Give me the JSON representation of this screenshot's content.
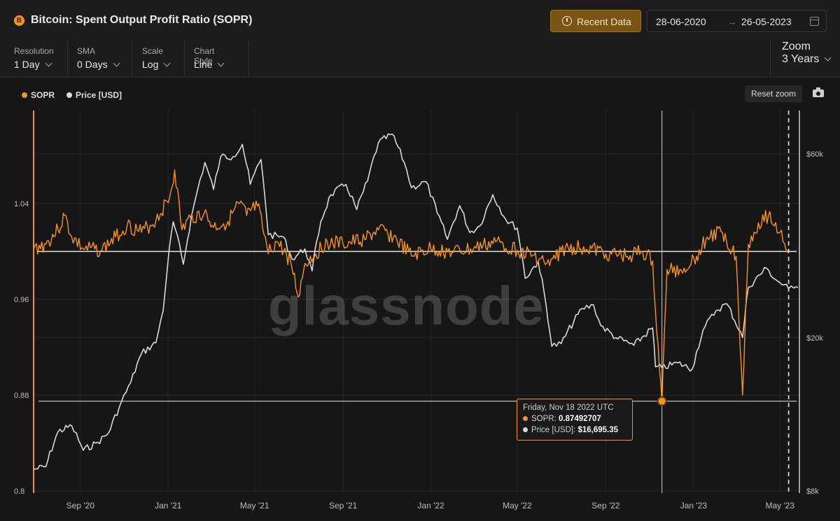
{
  "header": {
    "title": "Bitcoin: Spent Output Profit Ratio (SOPR)",
    "coin_icon": "bitcoin-icon",
    "recent_data_label": "Recent Data",
    "date_from": "28-06-2020",
    "date_to": "26-05-2023",
    "date_arrow": "→",
    "colors": {
      "accent": "#f7931a",
      "button_bg": "#7a5412"
    }
  },
  "controls": {
    "resolution": {
      "label": "Resolution",
      "value": "1 Day"
    },
    "sma": {
      "label": "SMA",
      "value": "0 Days"
    },
    "scale": {
      "label": "Scale",
      "value": "Log"
    },
    "chart_style": {
      "label": "Chart Style",
      "value": "Line"
    },
    "zoom": {
      "label": "Zoom",
      "value": "3 Years"
    }
  },
  "legend": {
    "items": [
      {
        "label": "SOPR",
        "color": "#f7931a"
      },
      {
        "label": "Price [USD]",
        "color": "#d9d9d9"
      }
    ]
  },
  "toolbar": {
    "reset_zoom_label": "Reset zoom",
    "camera_icon": "camera-icon"
  },
  "watermark": "glassnode",
  "tooltip": {
    "title": "Friday, Nov 18 2022 UTC",
    "sopr_label": "SOPR:",
    "sopr_value": "0.87492707",
    "price_label": "Price [USD]:",
    "price_value": "$16,695.35"
  },
  "chart_data": {
    "type": "line",
    "title": "Bitcoin: Spent Output Profit Ratio (SOPR)",
    "x_range": [
      "2020-06-28",
      "2023-05-26"
    ],
    "x_ticks": [
      "Sep '20",
      "Jan '21",
      "May '21",
      "Sep '21",
      "Jan '22",
      "May '22",
      "Sep '22",
      "Jan '23",
      "May '23"
    ],
    "y_left": {
      "ticks": [
        "0.8",
        "0.88",
        "0.96",
        "1.04"
      ],
      "range": [
        0.8,
        1.08
      ],
      "series": "SOPR"
    },
    "y_right": {
      "scale": "log",
      "ticks": [
        "$8k",
        "$20k",
        "$60k"
      ],
      "range": [
        8000,
        70000
      ],
      "series": "Price [USD]"
    },
    "reference_line_sopr": 1.0,
    "cursor": {
      "x": "2022-11-18",
      "sopr": 0.87492707,
      "price": 16695.35
    },
    "vertical_dashed_marker": "2023-05-13",
    "series": [
      {
        "name": "SOPR",
        "color": "#f7931a",
        "axis": "left",
        "points": [
          [
            "2020-06-28",
            1.002
          ],
          [
            "2020-07-15",
            1.006
          ],
          [
            "2020-08-01",
            1.018
          ],
          [
            "2020-08-10",
            1.03
          ],
          [
            "2020-08-20",
            1.012
          ],
          [
            "2020-09-05",
            1.002
          ],
          [
            "2020-10-01",
            1.001
          ],
          [
            "2020-10-20",
            1.012
          ],
          [
            "2020-11-05",
            1.022
          ],
          [
            "2020-11-25",
            1.016
          ],
          [
            "2020-12-15",
            1.026
          ],
          [
            "2021-01-03",
            1.045
          ],
          [
            "2021-01-10",
            1.068
          ],
          [
            "2021-01-20",
            1.018
          ],
          [
            "2021-02-01",
            1.028
          ],
          [
            "2021-02-20",
            1.032
          ],
          [
            "2021-03-05",
            1.02
          ],
          [
            "2021-03-25",
            1.025
          ],
          [
            "2021-04-10",
            1.04
          ],
          [
            "2021-04-20",
            1.03
          ],
          [
            "2021-05-05",
            1.038
          ],
          [
            "2021-05-12",
            1.02
          ],
          [
            "2021-05-20",
            0.998
          ],
          [
            "2021-06-01",
            1.008
          ],
          [
            "2021-06-20",
            0.992
          ],
          [
            "2021-07-01",
            0.962
          ],
          [
            "2021-07-10",
            0.99
          ],
          [
            "2021-07-25",
            0.998
          ],
          [
            "2021-08-10",
            1.008
          ],
          [
            "2021-09-01",
            1.006
          ],
          [
            "2021-10-01",
            1.01
          ],
          [
            "2021-10-20",
            1.018
          ],
          [
            "2021-11-10",
            1.012
          ],
          [
            "2021-12-05",
            0.996
          ],
          [
            "2022-01-01",
            1.002
          ],
          [
            "2022-02-01",
            0.999
          ],
          [
            "2022-03-01",
            1.002
          ],
          [
            "2022-04-01",
            1.008
          ],
          [
            "2022-05-01",
            1.001
          ],
          [
            "2022-06-01",
            0.994
          ],
          [
            "2022-06-15",
            0.988
          ],
          [
            "2022-07-01",
            1.001
          ],
          [
            "2022-08-01",
            1.004
          ],
          [
            "2022-09-01",
            0.998
          ],
          [
            "2022-10-01",
            0.996
          ],
          [
            "2022-10-20",
            1.0
          ],
          [
            "2022-11-05",
            0.992
          ],
          [
            "2022-11-09",
            0.95
          ],
          [
            "2022-11-18",
            0.8749
          ],
          [
            "2022-11-25",
            0.985
          ],
          [
            "2022-12-15",
            0.984
          ],
          [
            "2023-01-05",
            0.996
          ],
          [
            "2023-01-20",
            1.012
          ],
          [
            "2023-02-10",
            1.016
          ],
          [
            "2023-03-01",
            0.996
          ],
          [
            "2023-03-10",
            0.88
          ],
          [
            "2023-03-18",
            1.006
          ],
          [
            "2023-04-01",
            1.024
          ],
          [
            "2023-04-15",
            1.03
          ],
          [
            "2023-05-01",
            1.016
          ],
          [
            "2023-05-13",
            1.002
          ]
        ]
      },
      {
        "name": "Price [USD]",
        "color": "#d9d9d9",
        "axis": "right",
        "points": [
          [
            "2020-06-28",
            9100
          ],
          [
            "2020-07-15",
            9250
          ],
          [
            "2020-08-01",
            11400
          ],
          [
            "2020-08-20",
            11800
          ],
          [
            "2020-09-05",
            10200
          ],
          [
            "2020-09-25",
            10700
          ],
          [
            "2020-10-10",
            11300
          ],
          [
            "2020-10-25",
            13200
          ],
          [
            "2020-11-10",
            15300
          ],
          [
            "2020-11-25",
            18200
          ],
          [
            "2020-12-15",
            19400
          ],
          [
            "2020-12-25",
            23500
          ],
          [
            "2021-01-08",
            40000
          ],
          [
            "2021-01-22",
            31000
          ],
          [
            "2021-02-08",
            46000
          ],
          [
            "2021-02-21",
            57000
          ],
          [
            "2021-03-05",
            48500
          ],
          [
            "2021-03-15",
            59000
          ],
          [
            "2021-04-01",
            59000
          ],
          [
            "2021-04-14",
            63500
          ],
          [
            "2021-04-25",
            50000
          ],
          [
            "2021-05-10",
            58000
          ],
          [
            "2021-05-20",
            37000
          ],
          [
            "2021-06-10",
            36500
          ],
          [
            "2021-06-22",
            32000
          ],
          [
            "2021-07-10",
            34000
          ],
          [
            "2021-07-20",
            29800
          ],
          [
            "2021-08-01",
            40000
          ],
          [
            "2021-08-15",
            47000
          ],
          [
            "2021-09-05",
            50000
          ],
          [
            "2021-09-20",
            43000
          ],
          [
            "2021-10-05",
            51000
          ],
          [
            "2021-10-20",
            64000
          ],
          [
            "2021-11-08",
            67500
          ],
          [
            "2021-11-25",
            57000
          ],
          [
            "2021-12-05",
            49000
          ],
          [
            "2021-12-25",
            50800
          ],
          [
            "2022-01-10",
            42000
          ],
          [
            "2022-01-24",
            36000
          ],
          [
            "2022-02-10",
            44000
          ],
          [
            "2022-02-24",
            37500
          ],
          [
            "2022-03-10",
            39000
          ],
          [
            "2022-03-28",
            47000
          ],
          [
            "2022-04-15",
            40500
          ],
          [
            "2022-05-01",
            38500
          ],
          [
            "2022-05-12",
            28500
          ],
          [
            "2022-05-30",
            31500
          ],
          [
            "2022-06-18",
            19000
          ],
          [
            "2022-07-01",
            19300
          ],
          [
            "2022-07-30",
            23800
          ],
          [
            "2022-08-15",
            24300
          ],
          [
            "2022-08-25",
            21500
          ],
          [
            "2022-09-15",
            20000
          ],
          [
            "2022-10-10",
            19100
          ],
          [
            "2022-11-05",
            21200
          ],
          [
            "2022-11-09",
            16800
          ],
          [
            "2022-11-18",
            16695
          ],
          [
            "2022-12-10",
            17200
          ],
          [
            "2022-12-30",
            16550
          ],
          [
            "2023-01-14",
            20900
          ],
          [
            "2023-02-01",
            23500
          ],
          [
            "2023-02-16",
            24500
          ],
          [
            "2023-03-10",
            20000
          ],
          [
            "2023-03-18",
            27000
          ],
          [
            "2023-04-12",
            30300
          ],
          [
            "2023-04-25",
            28300
          ],
          [
            "2023-05-13",
            26800
          ],
          [
            "2023-05-20",
            26900
          ],
          [
            "2023-05-26",
            27000
          ]
        ]
      }
    ]
  }
}
